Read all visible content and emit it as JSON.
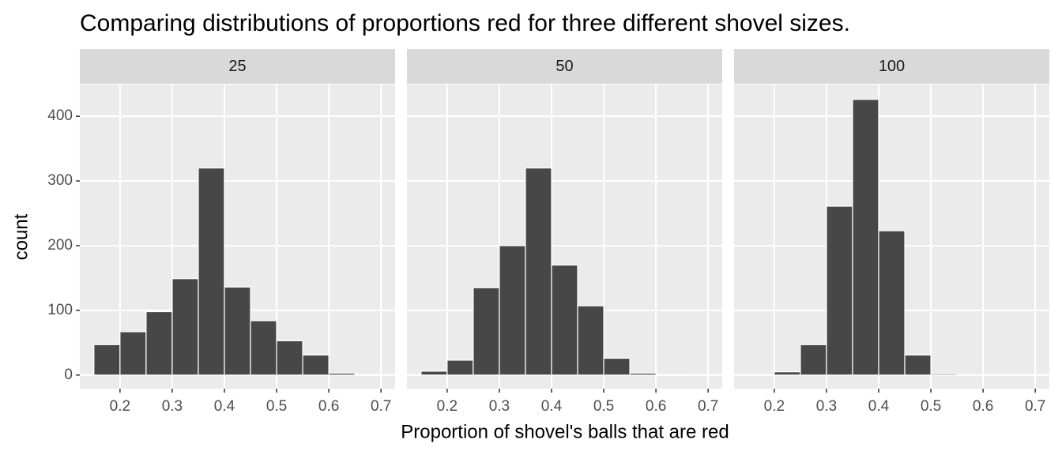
{
  "chart_data": {
    "type": "histogram",
    "title": "Comparing distributions of proportions red for three different shovel sizes.",
    "x_label": "Proportion of shovel's balls that are red",
    "y_label": "count",
    "color": "#474747",
    "xlim": [
      0.123,
      0.727
    ],
    "xticks": [
      0.2,
      0.3,
      0.4,
      0.5,
      0.6,
      0.7
    ],
    "ylim": [
      -21,
      449
    ],
    "yticks": [
      0,
      100,
      200,
      300,
      400
    ],
    "grid": true,
    "facets": [
      {
        "label": "25",
        "bins": [
          0.15,
          0.2,
          0.25,
          0.3,
          0.35,
          0.4,
          0.45,
          0.5,
          0.55,
          0.6,
          0.65,
          0.7
        ],
        "counts": [
          47,
          67,
          98,
          149,
          320,
          136,
          84,
          53,
          31,
          3,
          1
        ]
      },
      {
        "label": "50",
        "bins": [
          0.15,
          0.2,
          0.25,
          0.3,
          0.35,
          0.4,
          0.45,
          0.5,
          0.55,
          0.6,
          0.65,
          0.7
        ],
        "counts": [
          6,
          23,
          135,
          200,
          320,
          170,
          107,
          26,
          3,
          1,
          0
        ]
      },
      {
        "label": "100",
        "bins": [
          0.15,
          0.2,
          0.25,
          0.3,
          0.35,
          0.4,
          0.45,
          0.5,
          0.55,
          0.6,
          0.65,
          0.7
        ],
        "counts": [
          0,
          5,
          47,
          261,
          426,
          223,
          31,
          2,
          0,
          0,
          0
        ]
      }
    ]
  }
}
